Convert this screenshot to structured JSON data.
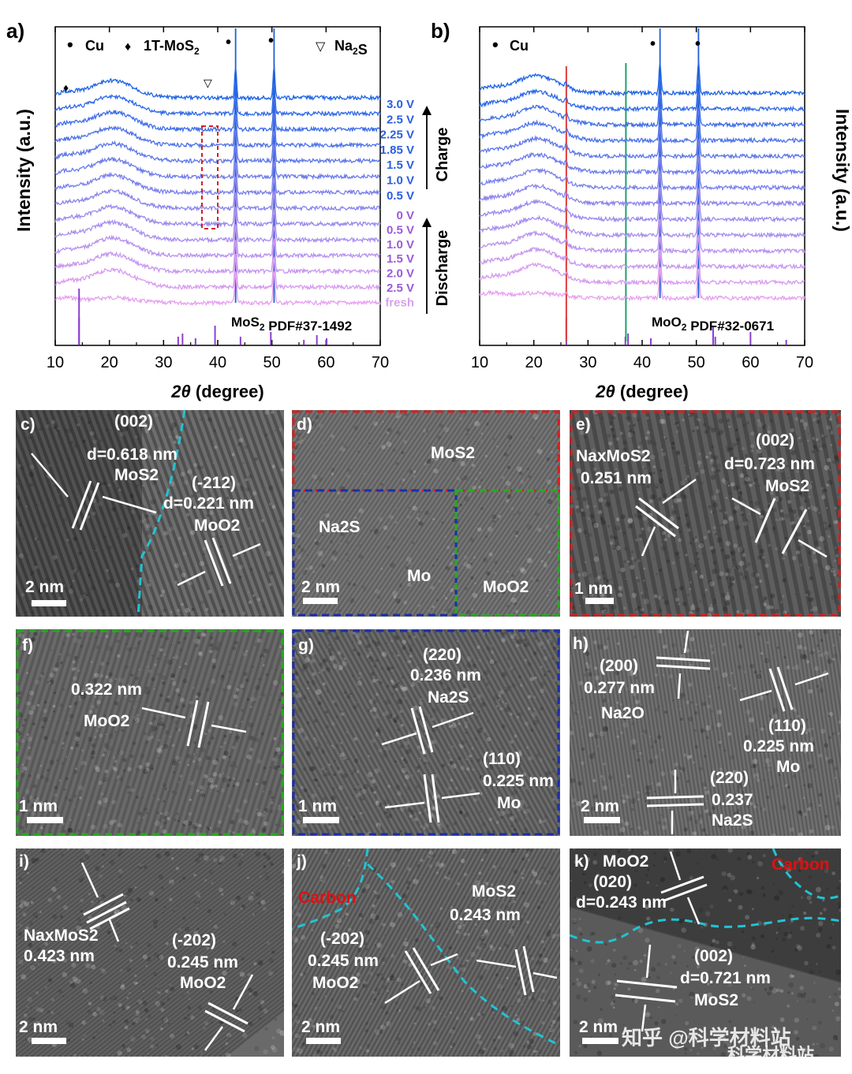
{
  "watermark": "知乎 @科学材料站",
  "watermark2": "科学材料站",
  "colors": {
    "cu_line": "#1f5fd6",
    "red_line": "#e23a3a",
    "green_line": "#1aa36b",
    "ref_bar": "#8b3fd1",
    "dashed_red": "#d42020",
    "dashed_blue": "#1c2fa8",
    "dashed_green": "#2aa822",
    "cyan": "#22c3d3",
    "carbon": "#e01010"
  },
  "chart_data": [
    {
      "id": "a",
      "type": "line",
      "panel_label": "a)",
      "xlabel": "2θ (degree)",
      "ylabel": "Intensity (a.u.)",
      "xlim": [
        10,
        70
      ],
      "xticks": [
        10,
        20,
        30,
        40,
        50,
        60,
        70
      ],
      "legend": [
        {
          "symbol": "•",
          "text": "Cu"
        },
        {
          "symbol": "♦",
          "text": "1T-MoS2"
        },
        {
          "symbol": "▽",
          "text": "Na2S"
        }
      ],
      "voltages_charge": [
        "3.0 V",
        "2.5 V",
        "2.25 V",
        "1.85 V",
        "1.5 V",
        "1.0 V",
        "0.5 V"
      ],
      "voltages_discharge": [
        "0 V",
        "0.5 V",
        "1.0 V",
        "1.5 V",
        "2.0 V",
        "2.5 V",
        "fresh"
      ],
      "group_charge": "Charge",
      "group_discharge": "Discharge",
      "reference": "MoS2 PDF#37-1492",
      "ref_peaks": [
        14.4,
        32.7,
        33.5,
        35.9,
        39.5,
        44.2,
        49.8,
        55.9,
        58.3,
        60.1
      ],
      "cu_peaks": [
        43.3,
        50.4
      ],
      "broad_peak_center": 20.5
    },
    {
      "id": "b",
      "type": "line",
      "panel_label": "b)",
      "xlabel": "2θ (degree)",
      "ylabel": "Intensity (a.u.)",
      "xlim": [
        10,
        70
      ],
      "xticks": [
        10,
        20,
        30,
        40,
        50,
        60,
        70
      ],
      "legend": [
        {
          "symbol": "•",
          "text": "Cu"
        }
      ],
      "reference": "MoO2 PDF#32-0671",
      "ref_peaks": [
        26.0,
        36.9,
        37.4,
        41.6,
        53.1,
        53.5,
        60.0,
        66.6
      ],
      "marker_lines": [
        26.0,
        37.0
      ],
      "cu_peaks": [
        43.3,
        50.4
      ],
      "broad_peak_center": 20.5
    }
  ],
  "tem_panels": {
    "c": {
      "label": "c)",
      "scale": "2 nm",
      "t1": "(002)",
      "t2": "d=0.618 nm",
      "t3": "MoS2",
      "t4": "(-212)",
      "t5": "d=0.221 nm",
      "t6": "MoO2"
    },
    "d": {
      "label": "d)",
      "scale": "2 nm",
      "t1": "MoS2",
      "t2": "Na2S",
      "t3": "Mo",
      "t4": "MoO2"
    },
    "e": {
      "label": "e)",
      "scale": "1 nm",
      "t1": "NaxMoS2",
      "t2": "0.251 nm",
      "t3": "(002)",
      "t4": "d=0.723 nm",
      "t5": "MoS2"
    },
    "f": {
      "label": "f)",
      "scale": "1 nm",
      "t1": "0.322 nm",
      "t2": "MoO2"
    },
    "g": {
      "label": "g)",
      "scale": "1 nm",
      "t1": "(220)",
      "t2": "0.236 nm",
      "t3": "Na2S",
      "t4": "(110)",
      "t5": "0.225 nm",
      "t6": "Mo"
    },
    "h": {
      "label": "h)",
      "scale": "2 nm",
      "t1": "(200)",
      "t2": "0.277 nm",
      "t3": "Na2O",
      "t4": "(110)",
      "t5": "0.225 nm",
      "t6": "Mo",
      "t7": "(220)",
      "t8": "0.237",
      "t9": "Na2S"
    },
    "i": {
      "label": "i)",
      "scale": "2 nm",
      "t1": "NaxMoS2",
      "t2": "0.423 nm",
      "t3": "(-202)",
      "t4": "0.245 nm",
      "t5": "MoO2"
    },
    "j": {
      "label": "j)",
      "scale": "2 nm",
      "t1": "Carbon",
      "t2": "MoS2",
      "t3": "0.243 nm",
      "t4": "(-202)",
      "t5": "0.245 nm",
      "t6": "MoO2"
    },
    "k": {
      "label": "k)",
      "scale": "2 nm",
      "t1": "MoO2",
      "t2": "(020)",
      "t3": "d=0.243 nm",
      "t4": "Carbon",
      "t5": "(002)",
      "t6": "d=0.721 nm",
      "t7": "MoS2"
    }
  }
}
